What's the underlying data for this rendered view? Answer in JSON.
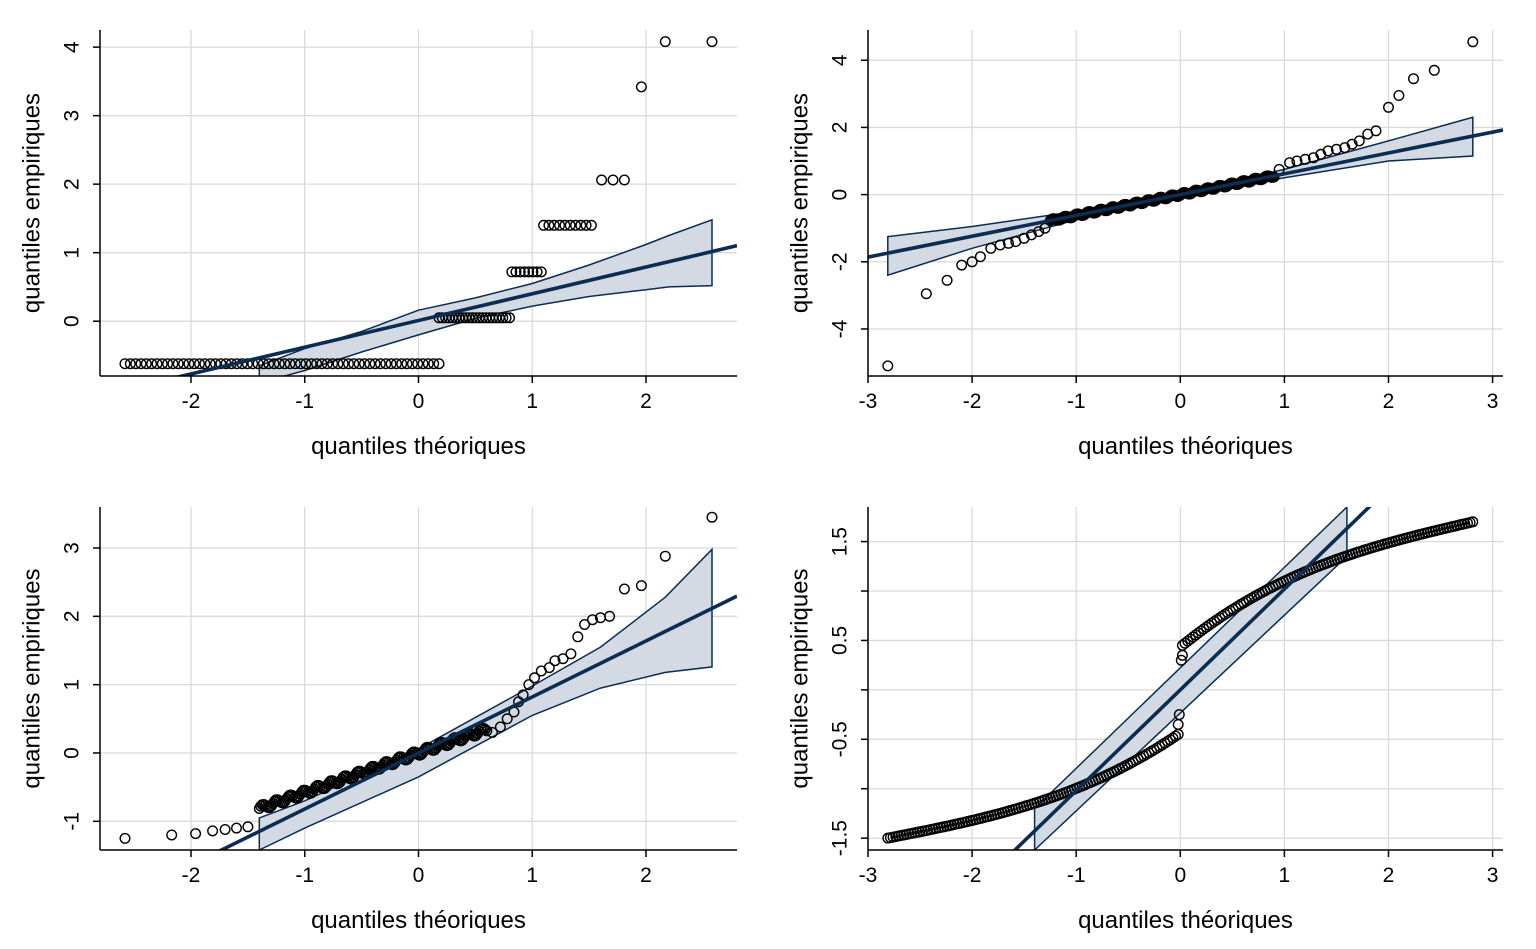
{
  "colors": {
    "line": "#0b2d52",
    "band_fill": "#d3dae3",
    "grid": "#d9d9d9",
    "axis": "#000000",
    "points": "#000000"
  },
  "chart_data": [
    {
      "type": "scatter",
      "xlabel": "quantiles théoriques",
      "ylabel": "quantiles empiriques",
      "xlim": [
        -2.8,
        2.8
      ],
      "ylim": [
        -0.8,
        4.25
      ],
      "xticks": [
        -2,
        -1,
        0,
        1,
        2
      ],
      "yticks": [
        0,
        1,
        2,
        3,
        4
      ],
      "xtick_labels": [
        "-2",
        "-1",
        "0",
        "1",
        "2"
      ],
      "ytick_labels": [
        "0",
        "1",
        "2",
        "3",
        "4"
      ],
      "grid": true,
      "series": [
        {
          "kind": "points",
          "groups": [
            {
              "y": -0.62,
              "x_from": -2.58,
              "x_to": 0.18,
              "n": 60
            },
            {
              "y": 0.05,
              "x_from": 0.18,
              "x_to": 0.8,
              "n": 22
            },
            {
              "y": 0.72,
              "x_from": 0.82,
              "x_to": 1.08,
              "n": 8
            },
            {
              "y": 1.4,
              "x_from": 1.1,
              "x_to": 1.52,
              "n": 10
            },
            {
              "y": 2.06,
              "x_from": 1.61,
              "x_to": 1.81,
              "n": 3
            }
          ],
          "points": [
            [
              1.96,
              3.42
            ],
            [
              2.17,
              4.08
            ],
            [
              2.58,
              4.08
            ]
          ]
        },
        {
          "kind": "line",
          "intercept": 0.01,
          "slope": 0.39
        },
        {
          "kind": "band",
          "x": [
            -1.4,
            -1.0,
            -0.5,
            0.0,
            0.5,
            1.0,
            1.5,
            2.0,
            2.2,
            2.58
          ],
          "lower": [
            -0.9,
            -0.72,
            -0.45,
            -0.2,
            0.04,
            0.22,
            0.36,
            0.46,
            0.5,
            0.52
          ],
          "upper": [
            -0.65,
            -0.4,
            -0.15,
            0.16,
            0.34,
            0.55,
            0.82,
            1.12,
            1.25,
            1.48
          ]
        }
      ]
    },
    {
      "type": "scatter",
      "xlabel": "quantiles théoriques",
      "ylabel": "quantiles empiriques",
      "xlim": [
        -3.0,
        3.1
      ],
      "ylim": [
        -5.4,
        4.9
      ],
      "xticks": [
        -3,
        -2,
        -1,
        0,
        1,
        2,
        3
      ],
      "yticks": [
        -4,
        -2,
        0,
        2,
        4
      ],
      "xtick_labels": [
        "-3",
        "-2",
        "-1",
        "0",
        "1",
        "2",
        "3"
      ],
      "ytick_labels": [
        "-4",
        "-2",
        "0",
        "2",
        "4"
      ],
      "grid": true,
      "series": [
        {
          "kind": "points",
          "dense": {
            "x_from": -1.25,
            "x_to": 0.9,
            "intercept": 0.0,
            "slope": 0.62,
            "n": 170
          },
          "points": [
            [
              -2.81,
              -5.1
            ],
            [
              -2.44,
              -2.95
            ],
            [
              -2.24,
              -2.55
            ],
            [
              -2.1,
              -2.1
            ],
            [
              -2.0,
              -2.0
            ],
            [
              -1.92,
              -1.85
            ],
            [
              -1.82,
              -1.6
            ],
            [
              -1.73,
              -1.5
            ],
            [
              -1.65,
              -1.45
            ],
            [
              -1.58,
              -1.4
            ],
            [
              -1.5,
              -1.3
            ],
            [
              -1.43,
              -1.2
            ],
            [
              -1.36,
              -1.1
            ],
            [
              -1.3,
              -1.0
            ],
            [
              0.95,
              0.75
            ],
            [
              1.05,
              0.95
            ],
            [
              1.12,
              1.0
            ],
            [
              1.2,
              1.05
            ],
            [
              1.28,
              1.1
            ],
            [
              1.35,
              1.2
            ],
            [
              1.42,
              1.3
            ],
            [
              1.5,
              1.35
            ],
            [
              1.58,
              1.4
            ],
            [
              1.65,
              1.5
            ],
            [
              1.72,
              1.6
            ],
            [
              1.8,
              1.8
            ],
            [
              1.88,
              1.9
            ],
            [
              2.0,
              2.6
            ],
            [
              2.1,
              2.95
            ],
            [
              2.24,
              3.45
            ],
            [
              2.44,
              3.7
            ],
            [
              2.81,
              4.55
            ]
          ]
        },
        {
          "kind": "line",
          "intercept": 0.0,
          "slope": 0.62
        },
        {
          "kind": "band",
          "x": [
            -2.81,
            -2.0,
            -1.0,
            0.0,
            1.0,
            2.0,
            2.81
          ],
          "lower": [
            -2.4,
            -1.6,
            -0.75,
            -0.05,
            0.5,
            1.0,
            1.15
          ],
          "upper": [
            -1.25,
            -0.95,
            -0.5,
            0.05,
            0.75,
            1.6,
            2.3
          ]
        }
      ]
    },
    {
      "type": "scatter",
      "xlabel": "quantiles théoriques",
      "ylabel": "quantiles empiriques",
      "xlim": [
        -2.8,
        2.8
      ],
      "ylim": [
        -1.42,
        3.6
      ],
      "xticks": [
        -2,
        -1,
        0,
        1,
        2
      ],
      "yticks": [
        -1,
        0,
        1,
        2,
        3
      ],
      "xtick_labels": [
        "-2",
        "-1",
        "0",
        "1",
        "2"
      ],
      "ytick_labels": [
        "-1",
        "0",
        "1",
        "2",
        "3"
      ],
      "grid": true,
      "series": [
        {
          "kind": "points",
          "dense": {
            "x_from": -1.4,
            "x_to": 0.6,
            "intercept": 0.0,
            "slope": 0.58,
            "n": 150
          },
          "points": [
            [
              -2.58,
              -1.25
            ],
            [
              -2.17,
              -1.2
            ],
            [
              -1.96,
              -1.18
            ],
            [
              -1.81,
              -1.14
            ],
            [
              -1.7,
              -1.12
            ],
            [
              -1.6,
              -1.1
            ],
            [
              -1.5,
              -1.08
            ],
            [
              0.65,
              0.3
            ],
            [
              0.72,
              0.38
            ],
            [
              0.78,
              0.5
            ],
            [
              0.84,
              0.6
            ],
            [
              0.88,
              0.75
            ],
            [
              0.92,
              0.85
            ],
            [
              0.97,
              1.0
            ],
            [
              1.02,
              1.1
            ],
            [
              1.08,
              1.2
            ],
            [
              1.15,
              1.25
            ],
            [
              1.2,
              1.35
            ],
            [
              1.27,
              1.38
            ],
            [
              1.34,
              1.45
            ],
            [
              1.4,
              1.7
            ],
            [
              1.46,
              1.88
            ],
            [
              1.53,
              1.95
            ],
            [
              1.6,
              1.98
            ],
            [
              1.68,
              2.0
            ],
            [
              1.81,
              2.4
            ],
            [
              1.96,
              2.45
            ],
            [
              2.17,
              2.88
            ],
            [
              2.58,
              3.45
            ]
          ]
        },
        {
          "kind": "line",
          "intercept": 0.0,
          "slope": 0.82
        },
        {
          "kind": "band",
          "x": [
            -1.4,
            -1.0,
            0.0,
            1.0,
            1.6,
            2.17,
            2.58
          ],
          "lower": [
            -1.42,
            -1.1,
            -0.35,
            0.55,
            0.95,
            1.18,
            1.26
          ],
          "upper": [
            -0.95,
            -0.7,
            0.06,
            0.98,
            1.55,
            2.28,
            2.98
          ]
        }
      ]
    },
    {
      "type": "scatter",
      "xlabel": "quantiles théoriques",
      "ylabel": "quantiles empiriques",
      "xlim": [
        -3.0,
        3.1
      ],
      "ylim": [
        -1.62,
        1.85
      ],
      "xticks": [
        -3,
        -2,
        -1,
        0,
        1,
        2,
        3
      ],
      "yticks": [
        -1.5,
        -1.0,
        -0.5,
        0.0,
        0.5,
        1.0,
        1.5
      ],
      "xtick_labels": [
        "-3",
        "-2",
        "-1",
        "0",
        "1",
        "2",
        "3"
      ],
      "ytick_labels": [
        "-1.5",
        "",
        "-0.5",
        "",
        "0.5",
        "",
        "1.5"
      ],
      "grid": true,
      "series": [
        {
          "kind": "points",
          "curve_neg": {
            "x_from": -2.81,
            "x_to": -0.02,
            "y_from": -1.5,
            "y_to": -0.45,
            "n": 110
          },
          "curve_pos": {
            "x_from": 0.02,
            "x_to": 2.81,
            "y_from": 0.45,
            "y_to": 1.7,
            "n": 110
          },
          "points": [
            [
              -0.01,
              -0.25
            ],
            [
              -0.02,
              -0.35
            ],
            [
              0.01,
              0.3
            ],
            [
              0.02,
              0.35
            ]
          ]
        },
        {
          "kind": "line",
          "intercept": 0.0,
          "slope": 1.02
        },
        {
          "kind": "band",
          "x": [
            -1.4,
            1.6
          ],
          "lower": [
            -1.62,
            1.35
          ],
          "upper": [
            -1.2,
            1.85
          ]
        }
      ]
    }
  ]
}
